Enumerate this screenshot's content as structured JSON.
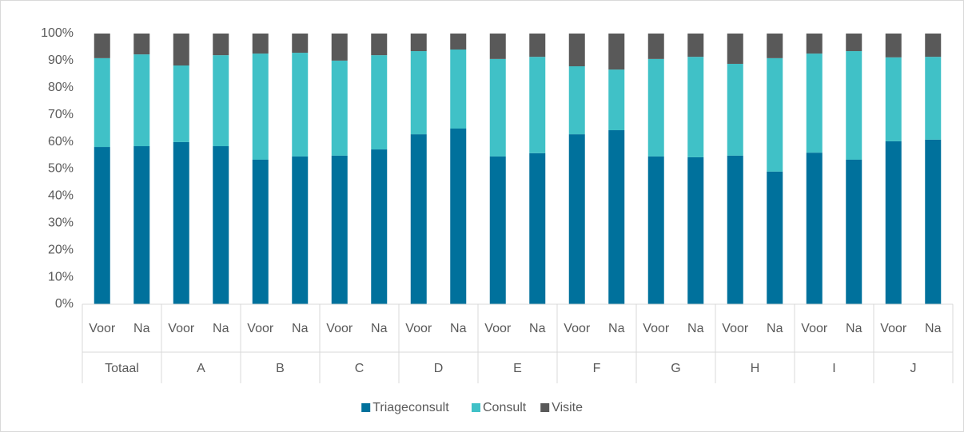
{
  "chart_data": {
    "type": "stacked_bar",
    "categories": [
      "Voor",
      "Na",
      "Voor",
      "Na",
      "Voor",
      "Na",
      "Voor",
      "Na",
      "Voor",
      "Na",
      "Voor",
      "Na",
      "Voor",
      "Na",
      "Voor",
      "Na",
      "Voor",
      "Na",
      "Voor",
      "Na",
      "Voor",
      "Na"
    ],
    "groups": [
      "Totaal",
      "A",
      "B",
      "C",
      "D",
      "E",
      "F",
      "G",
      "H",
      "I",
      "J"
    ],
    "series": [
      {
        "name": "Triageconsult",
        "color": "#00719c",
        "values": [
          58.1,
          58.4,
          59.9,
          58.4,
          53.4,
          54.6,
          54.9,
          57.2,
          62.8,
          64.9,
          54.6,
          55.8,
          62.8,
          64.3,
          54.6,
          54.3,
          54.9,
          49.0,
          56.0,
          53.4,
          60.2,
          60.8
        ]
      },
      {
        "name": "Consult",
        "color": "#40c1c7",
        "values": [
          32.8,
          33.9,
          28.3,
          33.6,
          39.2,
          38.3,
          35.1,
          34.8,
          30.7,
          29.2,
          36.0,
          35.6,
          25.1,
          22.4,
          36.0,
          37.1,
          33.9,
          41.9,
          36.6,
          40.1,
          31.0,
          30.6
        ]
      },
      {
        "name": "Visite",
        "color": "#595959",
        "values": [
          9.1,
          7.7,
          11.8,
          8.0,
          7.4,
          7.1,
          10.0,
          8.0,
          6.5,
          5.9,
          9.4,
          8.6,
          12.1,
          13.3,
          9.4,
          8.6,
          11.2,
          9.1,
          7.4,
          6.5,
          8.8,
          8.6
        ]
      }
    ],
    "ylim": [
      0,
      100
    ],
    "yticks": [
      {
        "value": 0,
        "label": "0%"
      },
      {
        "value": 10,
        "label": "10%"
      },
      {
        "value": 20,
        "label": "20%"
      },
      {
        "value": 30,
        "label": "30%"
      },
      {
        "value": 40,
        "label": "40%"
      },
      {
        "value": 50,
        "label": "50%"
      },
      {
        "value": 60,
        "label": "60%"
      },
      {
        "value": 70,
        "label": "70%"
      },
      {
        "value": 80,
        "label": "80%"
      },
      {
        "value": 90,
        "label": "90%"
      },
      {
        "value": 100,
        "label": "100%"
      }
    ],
    "grid": false,
    "legend": "bottom"
  }
}
